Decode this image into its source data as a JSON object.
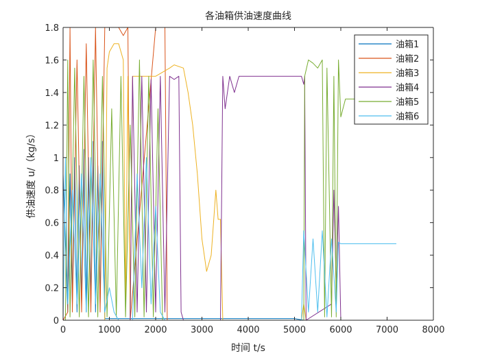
{
  "chart_data": {
    "type": "line",
    "title": "各油箱供油速度曲线",
    "xlabel": "时间 t/s",
    "ylabel": "供油速度 u/（kg/s）",
    "xlim": [
      0,
      8000
    ],
    "ylim": [
      0,
      1.8
    ],
    "xticks": [
      "0",
      "1000",
      "2000",
      "3000",
      "4000",
      "5000",
      "6000",
      "7000",
      "8000"
    ],
    "yticks": [
      "0",
      "0.2",
      "0.4",
      "0.6",
      "0.8",
      "1",
      "1.2",
      "1.4",
      "1.6",
      "1.8"
    ],
    "grid": false,
    "legend_position": "top-right",
    "series": [
      {
        "name": "油箱1",
        "color": "#0072BD",
        "x": [
          0,
          100,
          150,
          200,
          250,
          300,
          350,
          400,
          450,
          500,
          550,
          600,
          650,
          700,
          750,
          800,
          850,
          900,
          1000,
          1500,
          2000,
          3000,
          4000,
          5000,
          5200,
          7200
        ],
        "y": [
          0.9,
          0.05,
          0.9,
          0.1,
          1.0,
          0.05,
          0.95,
          0.1,
          1.05,
          0.05,
          1.0,
          0.1,
          1.1,
          0.05,
          0.95,
          0.1,
          1.1,
          0.01,
          0.01,
          0.01,
          0.01,
          0.01,
          0.01,
          0.01,
          0.0,
          0.0
        ]
      },
      {
        "name": "油箱2",
        "color": "#D95319",
        "x": [
          0,
          100,
          150,
          200,
          300,
          400,
          500,
          600,
          700,
          800,
          900,
          950,
          1000,
          1100,
          1200,
          1300,
          1400,
          1450,
          2000,
          2200,
          2250,
          2300,
          7200
        ],
        "y": [
          0.0,
          0.05,
          1.8,
          0.05,
          1.6,
          0.05,
          1.7,
          0.05,
          1.8,
          0.05,
          1.8,
          1.8,
          1.8,
          1.8,
          1.8,
          1.75,
          1.8,
          0.0,
          1.8,
          1.8,
          0.0,
          0.0,
          0.0
        ]
      },
      {
        "name": "油箱3",
        "color": "#EDB120",
        "x": [
          0,
          900,
          950,
          1000,
          1100,
          1200,
          1300,
          1350,
          1400,
          1450,
          1500,
          2000,
          2300,
          2400,
          2600,
          2700,
          2800,
          2900,
          3000,
          3100,
          3200,
          3300,
          3350,
          3400,
          3450,
          5150,
          5200,
          5250,
          7200
        ],
        "y": [
          0.0,
          0.0,
          1.55,
          1.65,
          1.7,
          1.7,
          1.6,
          0.1,
          1.5,
          0.0,
          1.5,
          1.5,
          1.55,
          1.57,
          1.55,
          1.4,
          1.2,
          0.9,
          0.5,
          0.3,
          0.4,
          0.8,
          0.62,
          0.62,
          0.0,
          0.0,
          0.1,
          0.0,
          0.0
        ]
      },
      {
        "name": "油箱4",
        "color": "#7E2F8E",
        "x": [
          0,
          1450,
          1500,
          1600,
          1700,
          1800,
          1900,
          2000,
          2100,
          2200,
          2300,
          2400,
          2500,
          2550,
          2600,
          3400,
          3450,
          3500,
          3600,
          3700,
          3800,
          5150,
          5200,
          5220,
          5250,
          5800,
          5850,
          5900,
          5950,
          6000,
          7200
        ],
        "y": [
          0.0,
          0.0,
          1.5,
          0.05,
          1.5,
          0.05,
          1.48,
          0.05,
          1.5,
          0.05,
          1.5,
          1.48,
          1.5,
          0.05,
          0.0,
          0.0,
          1.5,
          1.3,
          1.5,
          1.4,
          1.5,
          1.5,
          1.45,
          1.5,
          0.0,
          0.1,
          0.8,
          0.2,
          0.7,
          0.0,
          0.0
        ]
      },
      {
        "name": "油箱5",
        "color": "#77AC30",
        "x": [
          0,
          50,
          100,
          150,
          250,
          350,
          450,
          550,
          650,
          750,
          850,
          950,
          1050,
          1150,
          1250,
          1350,
          1450,
          1550,
          1650,
          1750,
          1850,
          1950,
          2050,
          2150,
          5200,
          5220,
          5300,
          5400,
          5500,
          5600,
          5650,
          5700,
          5800,
          5850,
          5900,
          5950,
          6000,
          6100,
          6500
        ],
        "y": [
          0.0,
          0.0,
          1.6,
          0.02,
          1.55,
          0.02,
          1.5,
          0.02,
          1.6,
          0.02,
          1.5,
          0.02,
          1.3,
          0.02,
          1.5,
          0.02,
          1.2,
          0.02,
          1.6,
          0.02,
          1.5,
          0.02,
          1.3,
          0.0,
          0.0,
          1.5,
          1.6,
          1.58,
          1.55,
          1.6,
          0.02,
          1.55,
          0.02,
          1.5,
          0.02,
          1.6,
          1.25,
          1.36,
          1.36
        ]
      },
      {
        "name": "油箱6",
        "color": "#4DBEEE",
        "x": [
          0,
          50,
          100,
          200,
          300,
          400,
          500,
          600,
          700,
          800,
          900,
          1000,
          1100,
          1200,
          1500,
          1600,
          1700,
          1800,
          1900,
          2000,
          2100,
          2200,
          2300,
          5150,
          5200,
          5300,
          5400,
          5500,
          5600,
          5700,
          5800,
          5900,
          5950,
          6000,
          6100,
          7200
        ],
        "y": [
          0.0,
          1.0,
          0.1,
          0.8,
          0.1,
          0.9,
          0.05,
          1.0,
          0.1,
          0.9,
          0.05,
          0.2,
          0.05,
          0.0,
          0.0,
          0.9,
          0.2,
          1.0,
          0.1,
          0.7,
          0.05,
          0.0,
          0.0,
          0.0,
          0.55,
          0.05,
          0.5,
          0.05,
          0.55,
          0.02,
          0.5,
          0.05,
          0.48,
          0.47,
          0.47,
          0.47
        ]
      }
    ]
  }
}
